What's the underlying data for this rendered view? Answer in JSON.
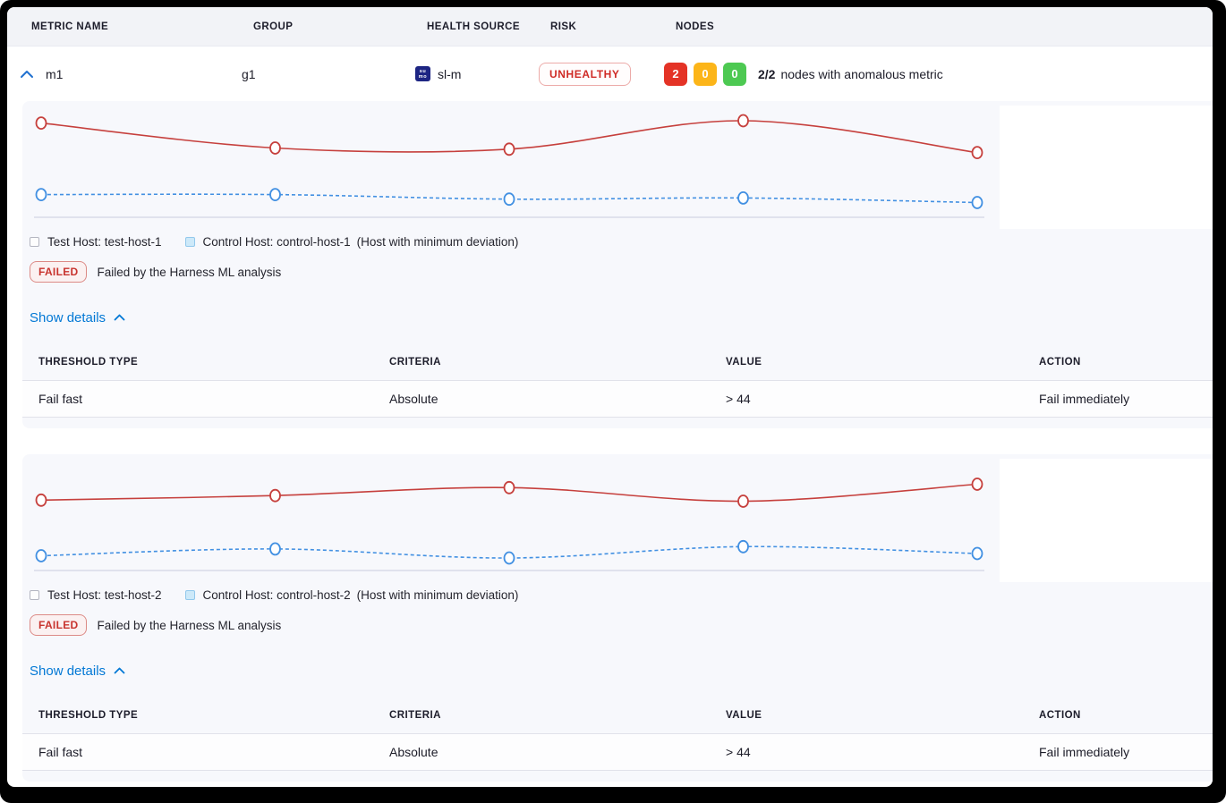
{
  "table_header": {
    "metric_name": "METRIC NAME",
    "group": "GROUP",
    "health_source": "HEALTH SOURCE",
    "risk": "RISK",
    "nodes": "NODES"
  },
  "metric_row": {
    "metric_name": "m1",
    "group": "g1",
    "health_source": {
      "label": "sl-m",
      "icon": "sumologic-icon",
      "icon_text_top": "su",
      "icon_text_bottom": "mo",
      "icon_color": "#1d2583"
    },
    "risk": {
      "label": "UNHEALTHY",
      "color": "#cf2b26"
    },
    "nodes": {
      "counts": [
        {
          "value": "2",
          "color": "#e43326"
        },
        {
          "value": "0",
          "color": "#fcb519"
        },
        {
          "value": "0",
          "color": "#4dc952"
        }
      ],
      "ratio": "2/2",
      "summary": "nodes with anomalous metric"
    }
  },
  "sections": [
    {
      "legend": {
        "test": "Test Host: test-host-1",
        "control": "Control Host: control-host-1",
        "note": "(Host with minimum deviation)"
      },
      "status": {
        "badge": "FAILED",
        "message": "Failed by the Harness ML analysis"
      },
      "details_toggle": "Show details",
      "threshold_table": {
        "headers": [
          "THRESHOLD TYPE",
          "CRITERIA",
          "VALUE",
          "ACTION"
        ],
        "rows": [
          [
            "Fail fast",
            "Absolute",
            "> 44",
            "Fail immediately"
          ]
        ]
      }
    },
    {
      "legend": {
        "test": "Test Host: test-host-2",
        "control": "Control Host: control-host-2",
        "note": "(Host with minimum deviation)"
      },
      "status": {
        "badge": "FAILED",
        "message": "Failed by the Harness ML analysis"
      },
      "details_toggle": "Show details",
      "threshold_table": {
        "headers": [
          "THRESHOLD TYPE",
          "CRITERIA",
          "VALUE",
          "ACTION"
        ],
        "rows": [
          [
            "Fail fast",
            "Absolute",
            "> 44",
            "Fail immediately"
          ]
        ]
      }
    }
  ],
  "chart_data": [
    {
      "type": "line",
      "title": "",
      "x": [
        1,
        2,
        3,
        4,
        5
      ],
      "x_axis_labels_visible": false,
      "y_axis_labels_visible": false,
      "grid": false,
      "legend_position": "bottom",
      "ylim": [
        0,
        100
      ],
      "series": [
        {
          "name": "Test Host: test-host-1",
          "color": "#c6403d",
          "style": "solid",
          "marker": "circle",
          "values": [
            83,
            61,
            60,
            85,
            57
          ]
        },
        {
          "name": "Control Host: control-host-1",
          "color": "#4290e2",
          "style": "dashed",
          "marker": "circle",
          "values": [
            20,
            20,
            16,
            17,
            13
          ]
        }
      ]
    },
    {
      "type": "line",
      "title": "",
      "x": [
        1,
        2,
        3,
        4,
        5
      ],
      "x_axis_labels_visible": false,
      "y_axis_labels_visible": false,
      "grid": false,
      "legend_position": "bottom",
      "ylim": [
        0,
        100
      ],
      "series": [
        {
          "name": "Test Host: test-host-2",
          "color": "#c6403d",
          "style": "solid",
          "marker": "circle",
          "values": [
            62,
            66,
            73,
            61,
            76
          ]
        },
        {
          "name": "Control Host: control-host-2",
          "color": "#4290e2",
          "style": "dashed",
          "marker": "circle",
          "values": [
            13,
            19,
            11,
            21,
            15
          ]
        }
      ]
    }
  ]
}
